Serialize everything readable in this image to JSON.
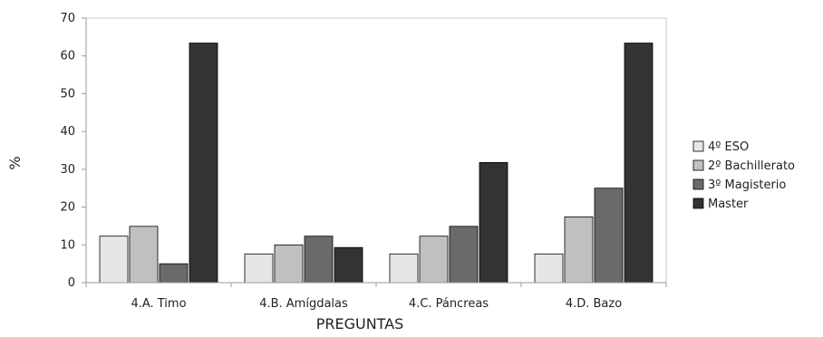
{
  "chart_data": {
    "type": "bar",
    "title": "",
    "xlabel": "PREGUNTAS",
    "ylabel": "%",
    "ylim": [
      0,
      70
    ],
    "yticks": [
      0,
      10,
      20,
      30,
      40,
      50,
      60,
      70
    ],
    "grid": false,
    "legend_position": "right",
    "categories": [
      "4.A. Timo",
      "4.B. Amígdalas",
      "4.C. Páncreas",
      "4.D. Bazo"
    ],
    "series": [
      {
        "name": "4º ESO",
        "color": "#e6e6e6",
        "values": [
          12.3,
          7.6,
          7.6,
          7.6
        ]
      },
      {
        "name": "2º Bachillerato",
        "color": "#c0c0c0",
        "values": [
          14.9,
          10.0,
          12.3,
          17.4
        ]
      },
      {
        "name": "3º Magisterio",
        "color": "#6a6a6a",
        "values": [
          5.0,
          12.3,
          14.9,
          25.0
        ]
      },
      {
        "name": "Master",
        "color": "#333333",
        "values": [
          63.4,
          9.3,
          31.8,
          63.4
        ]
      }
    ]
  }
}
